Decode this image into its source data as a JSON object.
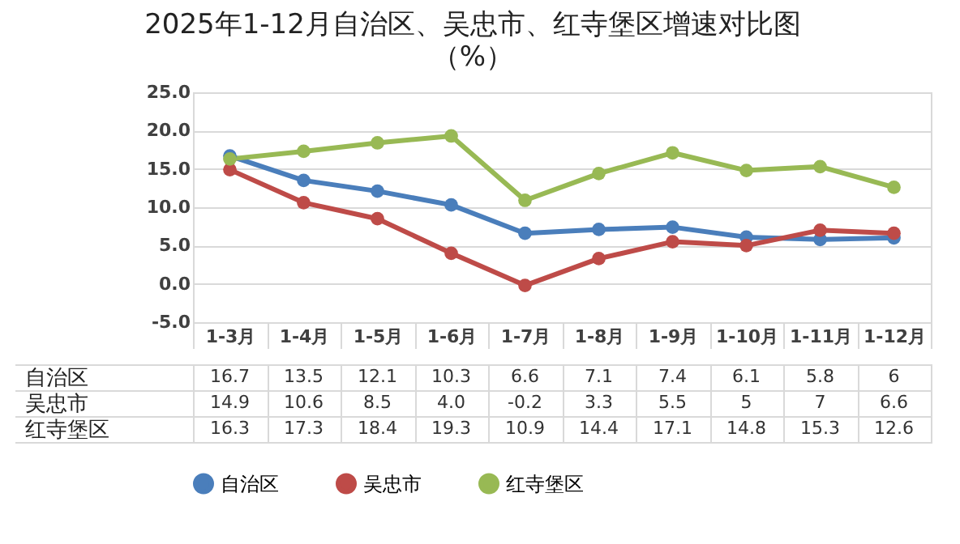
{
  "chart_data": {
    "type": "line",
    "title": "2025年1-12月自治区、吴忠市、红寺堡区增速对比图",
    "subtitle": "（%）",
    "categories": [
      "1-3月",
      "1-4月",
      "1-5月",
      "1-6月",
      "1-7月",
      "1-8月",
      "1-9月",
      "1-10月",
      "1-11月",
      "1-12月"
    ],
    "series": [
      {
        "name": "自治区",
        "color": "#4a7ebb",
        "values": [
          16.7,
          13.5,
          12.1,
          10.3,
          6.6,
          7.1,
          7.4,
          6.1,
          5.8,
          6
        ],
        "value_labels": [
          "16.7",
          "13.5",
          "12.1",
          "10.3",
          "6.6",
          "7.1",
          "7.4",
          "6.1",
          "5.8",
          "6"
        ]
      },
      {
        "name": "吴忠市",
        "color": "#be4b48",
        "values": [
          14.9,
          10.6,
          8.5,
          4.0,
          -0.2,
          3.3,
          5.5,
          5,
          7,
          6.6
        ],
        "value_labels": [
          "14.9",
          "10.6",
          "8.5",
          "4.0",
          "-0.2",
          "3.3",
          "5.5",
          "5",
          "7",
          "6.6"
        ]
      },
      {
        "name": "红寺堡区",
        "color": "#98b954",
        "values": [
          16.3,
          17.3,
          18.4,
          19.3,
          10.9,
          14.4,
          17.1,
          14.8,
          15.3,
          12.6
        ],
        "value_labels": [
          "16.3",
          "17.3",
          "18.4",
          "19.3",
          "10.9",
          "14.4",
          "17.1",
          "14.8",
          "15.3",
          "12.6"
        ]
      }
    ],
    "ylim": [
      -5,
      25
    ],
    "yticks": [
      {
        "value": -5,
        "label": "-5.0"
      },
      {
        "value": 0,
        "label": "0.0"
      },
      {
        "value": 5,
        "label": "5.0"
      },
      {
        "value": 10,
        "label": "10.0"
      },
      {
        "value": 15,
        "label": "15.0"
      },
      {
        "value": 20,
        "label": "20.0"
      },
      {
        "value": 25,
        "label": "25.0"
      }
    ],
    "grid": "y",
    "legend": "bottom",
    "marker": "circle",
    "line_style": "solid"
  }
}
